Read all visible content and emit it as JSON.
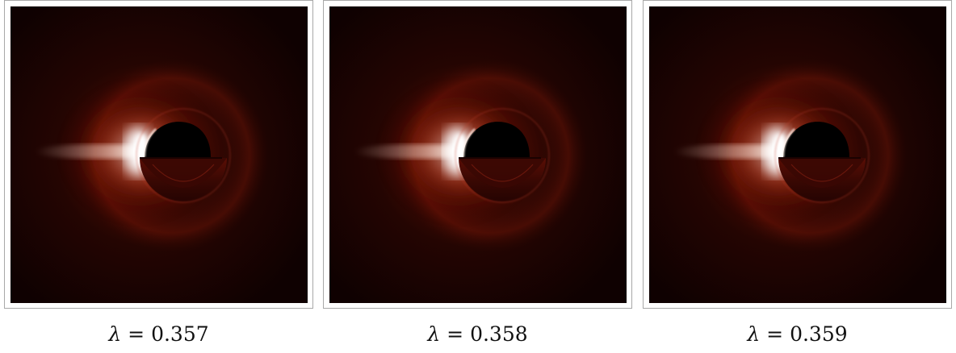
{
  "panels": [
    {
      "symbol": "λ",
      "equals": " = ",
      "value": "0.357"
    },
    {
      "symbol": "λ",
      "equals": " = ",
      "value": "0.358"
    },
    {
      "symbol": "λ",
      "equals": " = ",
      "value": "0.359"
    }
  ],
  "colors": {
    "background_dark": "#100000",
    "glow_red": "#8a1a0a",
    "glow_hot": "#ffffff",
    "shadow": "#000000",
    "frame_border": "#a8a8a8"
  }
}
